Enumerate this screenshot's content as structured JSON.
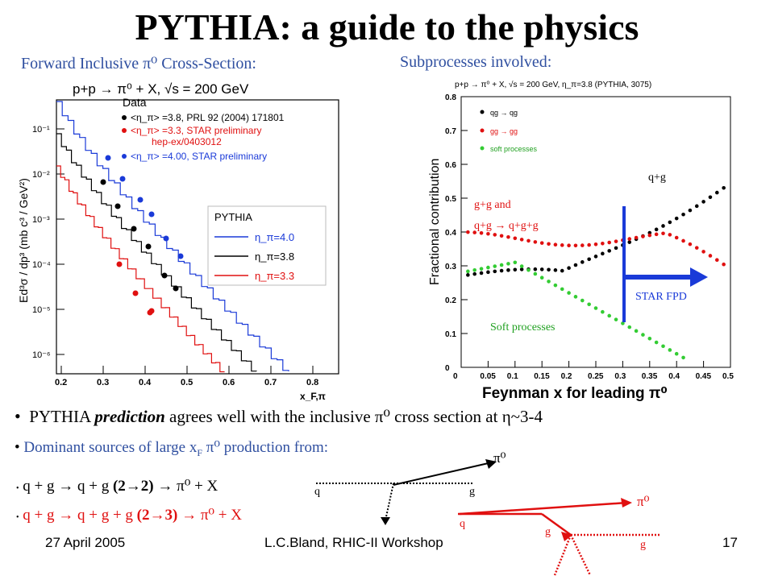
{
  "slide": {
    "title": "PYTHIA:  a guide to the physics",
    "left_caption": "Forward Inclusive π⁰ Cross-Section:",
    "right_caption": "Subprocesses involved:",
    "bullets": {
      "b1_pre": "PYTHIA ",
      "b1_em": "prediction",
      "b1_post": " agrees well with the inclusive π⁰ cross section at η~3-4",
      "b2": "Dominant sources of large x",
      "b2_sub": "F",
      "b2_post": " π⁰ production from:",
      "p1_a": "q + g → q + g ",
      "p1_b": "(2→2)",
      "p1_c": " → π⁰ + X",
      "p2_a": "q + g → q + g + g ",
      "p2_b": "(2→3)",
      "p2_c": " → π⁰ + X"
    },
    "footer": {
      "date": "27 April 2005",
      "venue": "L.C.Bland, RHIC-II Workshop",
      "page": "17"
    },
    "colors": {
      "caption": "#2f4fa0",
      "red": "#e01010",
      "green": "#20a020",
      "blue": "#1a3ad8"
    }
  },
  "left_plot": {
    "header": "p+p → π⁰ + X, √s = 200 GeV",
    "ylabel": "Ed³σ / dp³ (mb c³ / GeV²)",
    "xlabel": "x_F,π",
    "legend_data_title": "Data",
    "legend_data": [
      "<η_π> =3.8, PRL 92 (2004) 171801",
      "<η_π> =3.3, STAR preliminary",
      "hep-ex/0403012",
      "<η_π> =4.00, STAR preliminary"
    ],
    "legend_pythia_title": "PYTHIA",
    "legend_pythia": [
      "η_π=4.0",
      "η_π=3.8",
      "η_π=3.3"
    ],
    "xticks": [
      "0.2",
      "0.3",
      "0.4",
      "0.5",
      "0.6",
      "0.7",
      "0.8"
    ],
    "yticks": [
      "10⁻¹",
      "10⁻²",
      "10⁻³",
      "10⁻⁴",
      "10⁻⁵",
      "10⁻⁶"
    ]
  },
  "right_plot": {
    "header": "p+p → π⁰ + X, √s = 200 GeV, η_π=3.8 (PYTHIA, 3075)",
    "ylabel": "Fractional contribution",
    "xlabel": "Feynman x for leading π⁰",
    "legend": [
      "qg → qg",
      "gg → gg",
      "soft processes"
    ],
    "xticks": [
      "0",
      "0.05",
      "0.1",
      "0.15",
      "0.2",
      "0.25",
      "0.3",
      "0.35",
      "0.4",
      "0.45",
      "0.5"
    ],
    "yticks": [
      "0",
      "0.1",
      "0.2",
      "0.3",
      "0.4",
      "0.5",
      "0.6",
      "0.7",
      "0.8"
    ],
    "ann_qg": "q+g",
    "ann_gg1": "g+g and",
    "ann_gg2": "q+g → q+g+g",
    "ann_soft": "Soft processes",
    "ann_fpd": "STAR FPD"
  },
  "diagrams": {
    "d1": {
      "pi": "π⁰",
      "q": "q",
      "g": "g"
    },
    "d2": {
      "pi": "π⁰",
      "q": "q",
      "g1": "g",
      "g2": "g"
    }
  }
}
